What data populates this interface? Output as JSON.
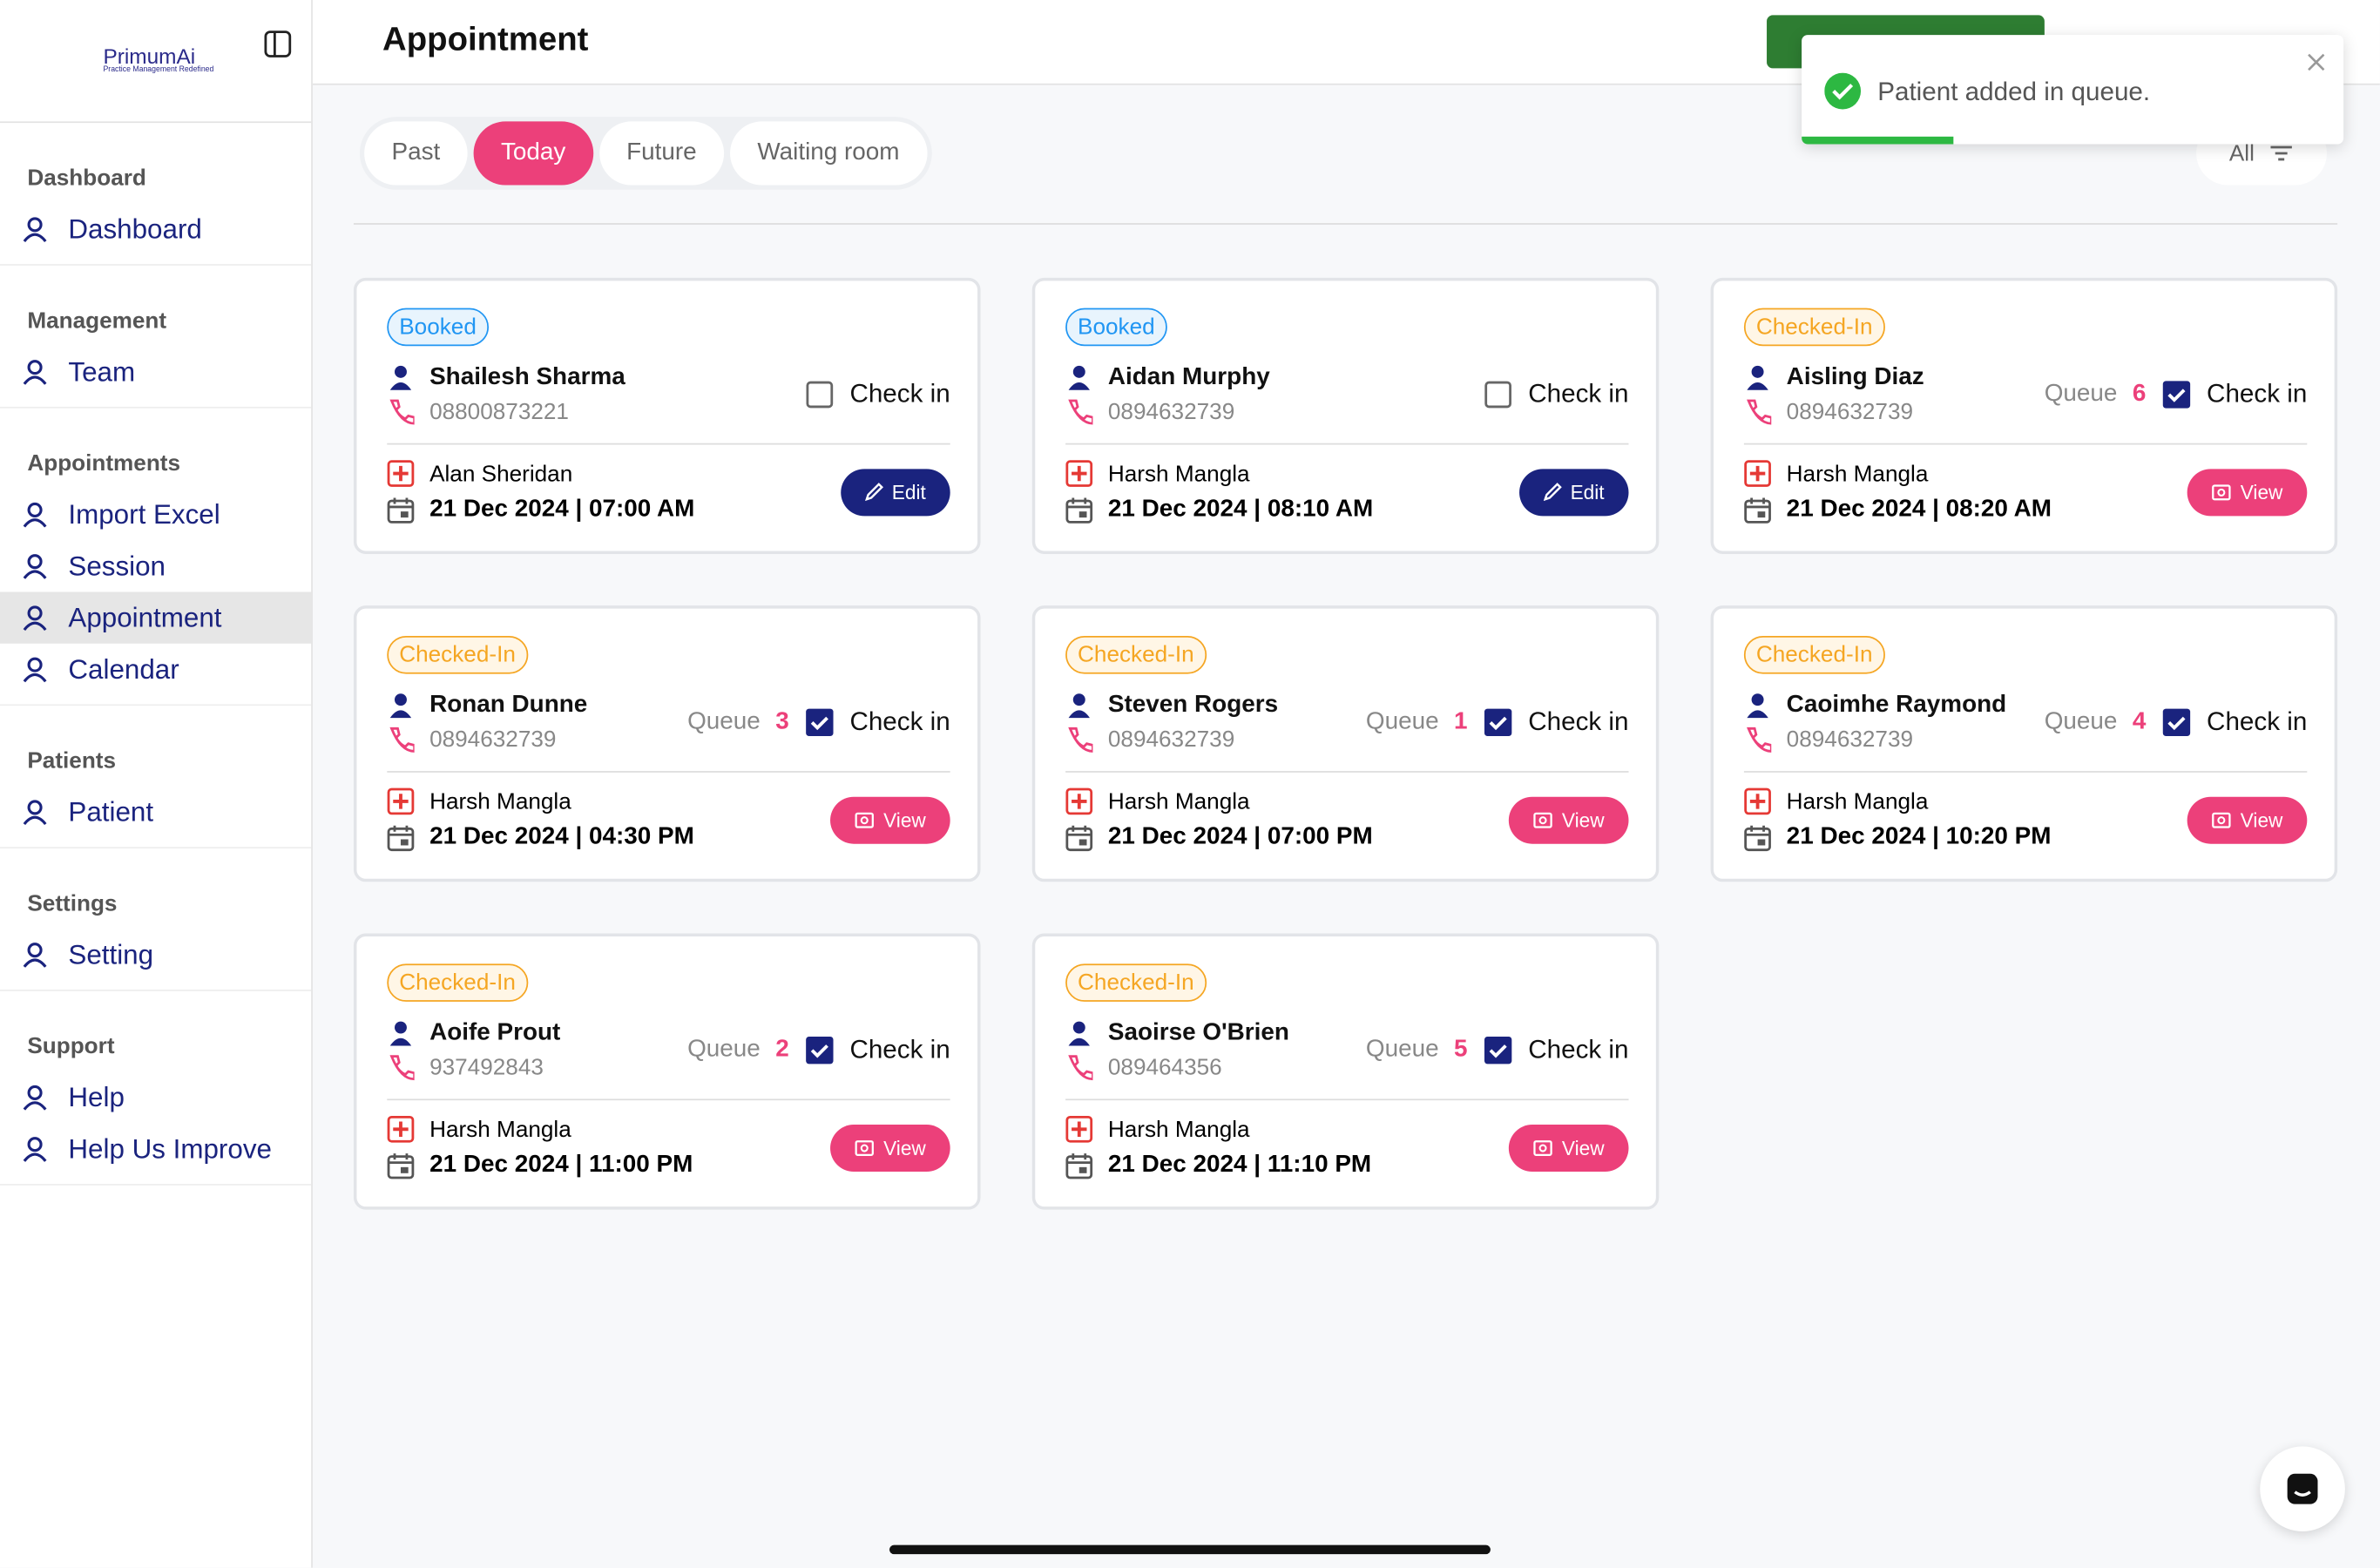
{
  "logo": {
    "name": "PrimumAi",
    "tagline": "Practice Management Redefined"
  },
  "header": {
    "title": "Appointment",
    "filter": "All"
  },
  "sidebar": [
    {
      "heading": "Dashboard",
      "items": [
        {
          "label": "Dashboard"
        }
      ]
    },
    {
      "heading": "Management",
      "items": [
        {
          "label": "Team"
        }
      ]
    },
    {
      "heading": "Appointments",
      "items": [
        {
          "label": "Import Excel"
        },
        {
          "label": "Session"
        },
        {
          "label": "Appointment",
          "active": true
        },
        {
          "label": "Calendar"
        }
      ]
    },
    {
      "heading": "Patients",
      "items": [
        {
          "label": "Patient"
        }
      ]
    },
    {
      "heading": "Settings",
      "items": [
        {
          "label": "Setting"
        }
      ]
    },
    {
      "heading": "Support",
      "items": [
        {
          "label": "Help"
        },
        {
          "label": "Help Us Improve"
        }
      ]
    }
  ],
  "tabs": [
    {
      "label": "Past"
    },
    {
      "label": "Today",
      "active": true
    },
    {
      "label": "Future"
    },
    {
      "label": "Waiting room"
    }
  ],
  "labels": {
    "queue": "Queue",
    "check_in": "Check in"
  },
  "cards": [
    {
      "status": "Booked",
      "name": "Shailesh Sharma",
      "phone": "08800873221",
      "doctor": "Alan Sheridan",
      "datetime": "21 Dec 2024 | 07:00 AM",
      "checked": false,
      "action": "Edit"
    },
    {
      "status": "Booked",
      "name": "Aidan Murphy",
      "phone": "0894632739",
      "doctor": "Harsh Mangla",
      "datetime": "21 Dec 2024 | 08:10 AM",
      "checked": false,
      "action": "Edit"
    },
    {
      "status": "Checked-In",
      "name": "Aisling Diaz",
      "phone": "0894632739",
      "doctor": "Harsh Mangla",
      "datetime": "21 Dec 2024 | 08:20 AM",
      "queue": 6,
      "checked": true,
      "action": "View"
    },
    {
      "status": "Checked-In",
      "name": "Ronan Dunne",
      "phone": "0894632739",
      "doctor": "Harsh Mangla",
      "datetime": "21 Dec 2024 | 04:30 PM",
      "queue": 3,
      "checked": true,
      "action": "View"
    },
    {
      "status": "Checked-In",
      "name": "Steven Rogers",
      "phone": "0894632739",
      "doctor": "Harsh Mangla",
      "datetime": "21 Dec 2024 | 07:00 PM",
      "queue": 1,
      "checked": true,
      "action": "View"
    },
    {
      "status": "Checked-In",
      "name": "Caoimhe Raymond",
      "phone": "0894632739",
      "doctor": "Harsh Mangla",
      "datetime": "21 Dec 2024 | 10:20 PM",
      "queue": 4,
      "checked": true,
      "action": "View"
    },
    {
      "status": "Checked-In",
      "name": "Aoife Prout",
      "phone": "937492843",
      "doctor": "Harsh Mangla",
      "datetime": "21 Dec 2024 | 11:00 PM",
      "queue": 2,
      "checked": true,
      "action": "View"
    },
    {
      "status": "Checked-In",
      "name": "Saoirse O'Brien",
      "phone": "089464356",
      "doctor": "Harsh Mangla",
      "datetime": "21 Dec 2024 | 11:10 PM",
      "queue": 5,
      "checked": true,
      "action": "View"
    }
  ],
  "toast": {
    "message": "Patient added in queue."
  }
}
